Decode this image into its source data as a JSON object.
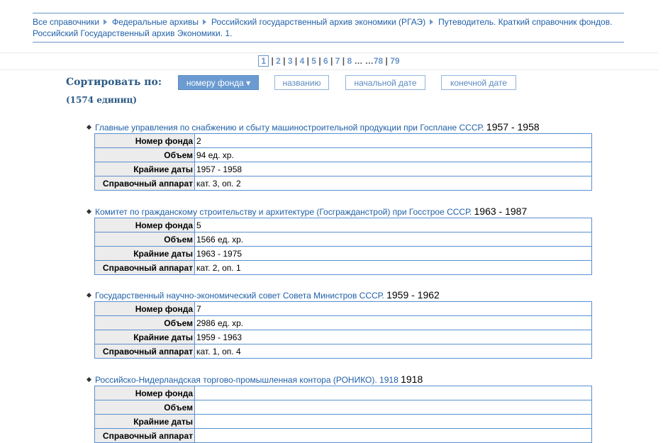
{
  "breadcrumb": [
    "Все справочники",
    "Федеральные архивы",
    "Российский государственный архив экономики (РГАЭ)",
    "Путеводитель. Краткий справочник фондов. Российский Государственный архив Экономики. 1."
  ],
  "pagination": {
    "current": "1",
    "pages": [
      "2",
      "3",
      "4",
      "5",
      "6",
      "7",
      "8"
    ],
    "ellipsis": "… …",
    "last": [
      "78",
      "79"
    ]
  },
  "sort": {
    "label": "Сортировать по:",
    "options": [
      "номеру фонда ▾",
      "названию",
      "начальной дате",
      "конечной дате"
    ],
    "active": 0,
    "count": "(1574 единиц)"
  },
  "labels": [
    "Номер фонда",
    "Объем",
    "Крайние даты",
    "Справочный аппарат"
  ],
  "items": [
    {
      "title": "Главные управления по снабжению и сбыту машиностроительной продукции при Госплане СССР.",
      "years": "1957 - 1958",
      "values": [
        "2",
        "94 ед. хр.",
        "1957 - 1958",
        "кат. 3, оп. 2"
      ]
    },
    {
      "title": "Комитет по гражданскому строительству и архитектуре (Госгражданстрой) при Госстрое СССР.",
      "years": "1963 - 1987",
      "values": [
        "5",
        "1566 ед. хр.",
        "1963 - 1975",
        "кат. 2, оп. 1"
      ]
    },
    {
      "title": "Государственный научно-экономический совет Совета Министров СССР.",
      "years": "1959 - 1962",
      "values": [
        "7",
        "2986 ед. хр.",
        "1959 - 1963",
        "кат. 1, оп. 4"
      ]
    },
    {
      "title": "Российско-Нидерландская торгово-промышленная контора (РОНИКО). 1918",
      "years": "1918",
      "values": [
        "",
        "",
        "",
        ""
      ]
    }
  ]
}
